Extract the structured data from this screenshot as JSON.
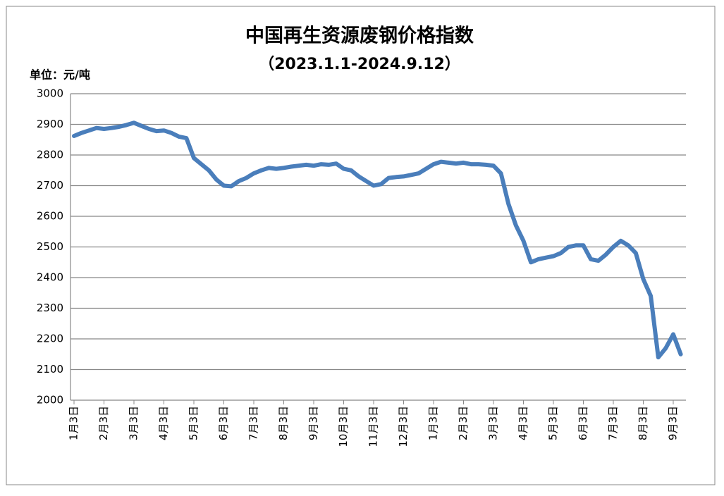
{
  "chart_data": {
    "type": "line",
    "title": "中国再生资源废钢价格指数",
    "subtitle": "（2023.1.1-2024.9.12）",
    "y_unit": "单位：元/吨",
    "categories": [
      "1月3日",
      null,
      null,
      null,
      "2月3日",
      null,
      null,
      null,
      "3月3日",
      null,
      null,
      null,
      "4月3日",
      null,
      null,
      null,
      "5月3日",
      null,
      null,
      null,
      "6月3日",
      null,
      null,
      null,
      "7月3日",
      null,
      null,
      null,
      "8月3日",
      null,
      null,
      null,
      "9月3日",
      null,
      null,
      null,
      "10月3日",
      null,
      null,
      null,
      "11月3日",
      null,
      null,
      null,
      "12月3日",
      null,
      null,
      null,
      "1月3日",
      null,
      null,
      null,
      "2月3日",
      null,
      null,
      null,
      "3月3日",
      null,
      null,
      null,
      "4月3日",
      null,
      null,
      null,
      "5月3日",
      null,
      null,
      null,
      "6月3日",
      null,
      null,
      null,
      "7月3日",
      null,
      null,
      null,
      "8月3日",
      null,
      null,
      null,
      "9月3日",
      null
    ],
    "series": [
      {
        "name": "中国再生资源废钢价格指数",
        "color": "#4a7ebb",
        "values": [
          2862,
          2872,
          2880,
          2888,
          2885,
          2888,
          2892,
          2898,
          2905,
          2895,
          2885,
          2878,
          2880,
          2872,
          2860,
          2855,
          2790,
          2770,
          2750,
          2720,
          2700,
          2698,
          2715,
          2725,
          2740,
          2750,
          2758,
          2755,
          2758,
          2762,
          2765,
          2768,
          2765,
          2770,
          2768,
          2772,
          2755,
          2750,
          2730,
          2715,
          2700,
          2705,
          2725,
          2728,
          2730,
          2735,
          2740,
          2755,
          2770,
          2778,
          2775,
          2772,
          2775,
          2770,
          2770,
          2768,
          2765,
          2740,
          2640,
          2570,
          2520,
          2450,
          2460,
          2465,
          2470,
          2480,
          2500,
          2505,
          2505,
          2460,
          2455,
          2475,
          2500,
          2520,
          2505,
          2480,
          2395,
          2340,
          2140,
          2170,
          2215,
          2150
        ]
      }
    ],
    "ylim": [
      2000,
      3000
    ],
    "yticks": [
      2000,
      2100,
      2200,
      2300,
      2400,
      2500,
      2600,
      2700,
      2800,
      2900,
      3000
    ],
    "grid": true
  }
}
